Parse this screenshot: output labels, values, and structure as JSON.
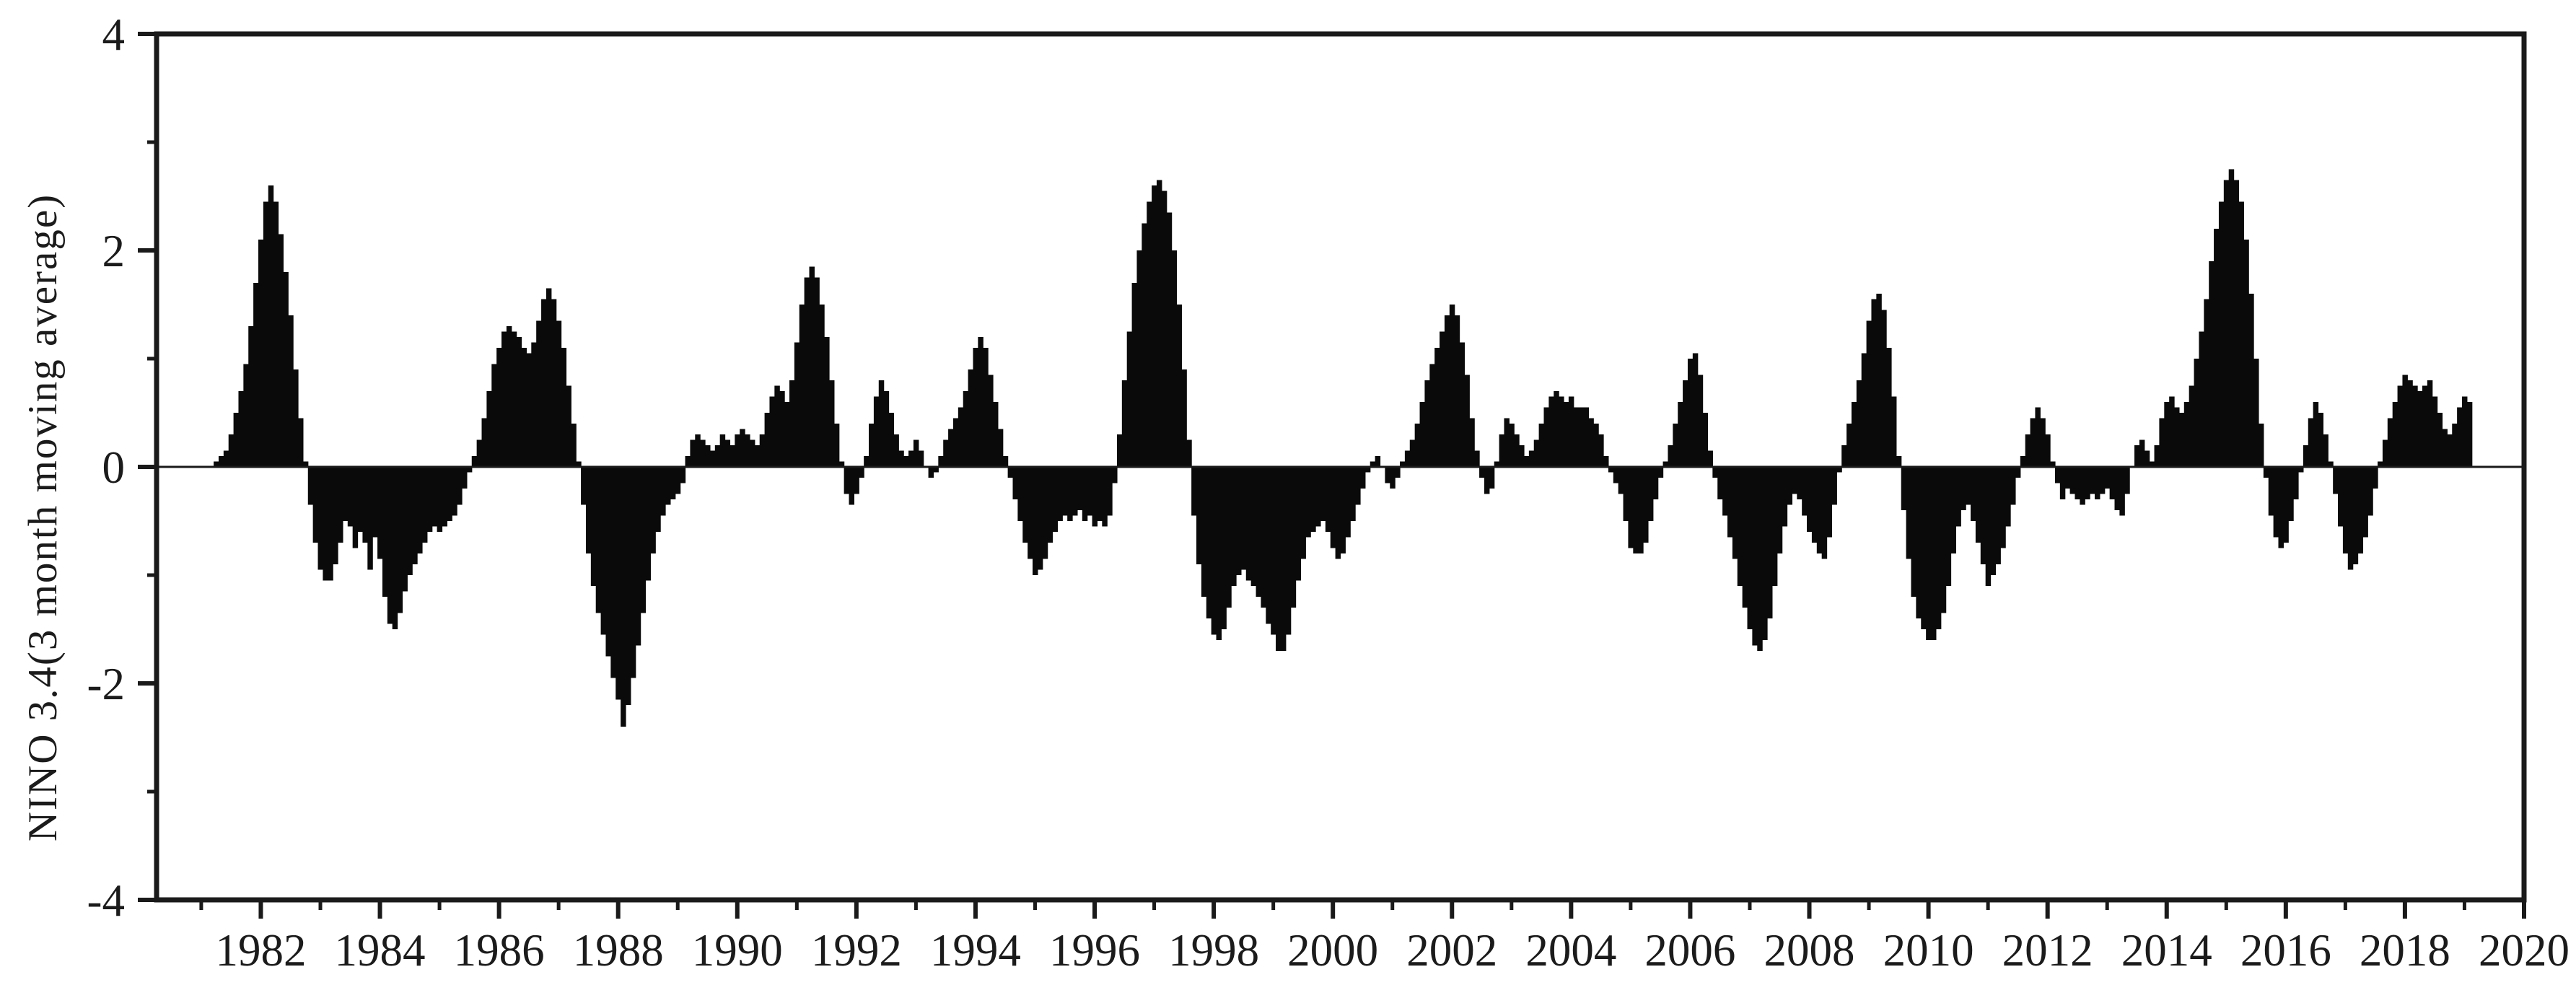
{
  "chart_data": {
    "type": "bar",
    "title": "",
    "xlabel": "",
    "ylabel": "NINO 3.4(3 month moving average)",
    "legend": false,
    "grid": false,
    "bar_color": "#0a0a0a",
    "axis_color": "#1a1a1a",
    "background_color": "#ffffff",
    "y_axis": {
      "min": -4,
      "max": 4,
      "labeled_ticks": [
        -4,
        -2,
        0,
        2,
        4
      ],
      "labeled_tick_texts": [
        "-4",
        "-2",
        "0",
        "2",
        "4"
      ],
      "minor_ticks": [
        -3,
        -1,
        1,
        3
      ],
      "zero_line": true
    },
    "x_axis": {
      "min": 1980.25,
      "max": 2020.0,
      "labeled_ticks": [
        1982,
        1984,
        1986,
        1988,
        1990,
        1992,
        1994,
        1996,
        1998,
        2000,
        2002,
        2004,
        2006,
        2008,
        2010,
        2012,
        2014,
        2016,
        2018,
        2020
      ],
      "labeled_tick_texts": [
        "1982",
        "1984",
        "1986",
        "1988",
        "1990",
        "1992",
        "1994",
        "1996",
        "1998",
        "2000",
        "2002",
        "2004",
        "2006",
        "2008",
        "2010",
        "2012",
        "2014",
        "2016",
        "2018",
        "2020"
      ],
      "minor_ticks": [
        1981,
        1983,
        1985,
        1987,
        1989,
        1991,
        1993,
        1995,
        1997,
        1999,
        2001,
        2003,
        2005,
        2007,
        2009,
        2011,
        2013,
        2015,
        2017,
        2019
      ]
    },
    "series_sampling": "monthly",
    "x_first_bar": 1981.17,
    "x_step": 0.0833333,
    "values": [
      0.0,
      0.05,
      0.1,
      0.15,
      0.3,
      0.5,
      0.7,
      0.95,
      1.3,
      1.7,
      2.1,
      2.45,
      2.6,
      2.45,
      2.15,
      1.8,
      1.4,
      0.9,
      0.45,
      0.05,
      -0.35,
      -0.7,
      -0.95,
      -1.05,
      -1.05,
      -0.9,
      -0.7,
      -0.5,
      -0.55,
      -0.75,
      -0.6,
      -0.7,
      -0.95,
      -0.65,
      -0.85,
      -1.2,
      -1.45,
      -1.5,
      -1.35,
      -1.15,
      -1.0,
      -0.9,
      -0.8,
      -0.7,
      -0.6,
      -0.55,
      -0.6,
      -0.55,
      -0.5,
      -0.45,
      -0.35,
      -0.2,
      -0.05,
      0.1,
      0.25,
      0.45,
      0.7,
      0.95,
      1.1,
      1.25,
      1.3,
      1.25,
      1.2,
      1.1,
      1.05,
      1.15,
      1.35,
      1.55,
      1.65,
      1.55,
      1.35,
      1.1,
      0.75,
      0.4,
      0.05,
      -0.35,
      -0.8,
      -1.1,
      -1.35,
      -1.55,
      -1.75,
      -1.95,
      -2.15,
      -2.4,
      -2.2,
      -1.95,
      -1.65,
      -1.35,
      -1.05,
      -0.8,
      -0.6,
      -0.45,
      -0.35,
      -0.3,
      -0.25,
      -0.15,
      0.1,
      0.25,
      0.3,
      0.25,
      0.2,
      0.15,
      0.2,
      0.3,
      0.25,
      0.2,
      0.3,
      0.35,
      0.3,
      0.25,
      0.2,
      0.3,
      0.5,
      0.65,
      0.75,
      0.7,
      0.6,
      0.8,
      1.15,
      1.5,
      1.75,
      1.85,
      1.75,
      1.5,
      1.2,
      0.8,
      0.4,
      0.05,
      -0.25,
      -0.35,
      -0.25,
      -0.1,
      0.1,
      0.4,
      0.65,
      0.8,
      0.7,
      0.5,
      0.3,
      0.15,
      0.1,
      0.15,
      0.25,
      0.15,
      0.0,
      -0.1,
      -0.05,
      0.1,
      0.25,
      0.35,
      0.45,
      0.55,
      0.7,
      0.9,
      1.1,
      1.2,
      1.1,
      0.85,
      0.6,
      0.35,
      0.1,
      -0.1,
      -0.3,
      -0.5,
      -0.7,
      -0.85,
      -1.0,
      -0.95,
      -0.85,
      -0.7,
      -0.6,
      -0.5,
      -0.45,
      -0.5,
      -0.45,
      -0.4,
      -0.5,
      -0.45,
      -0.55,
      -0.5,
      -0.55,
      -0.45,
      -0.15,
      0.3,
      0.8,
      1.25,
      1.7,
      2.0,
      2.25,
      2.45,
      2.6,
      2.65,
      2.55,
      2.35,
      2.0,
      1.5,
      0.9,
      0.25,
      -0.45,
      -0.9,
      -1.2,
      -1.4,
      -1.55,
      -1.6,
      -1.5,
      -1.3,
      -1.1,
      -1.0,
      -0.95,
      -1.05,
      -1.1,
      -1.2,
      -1.3,
      -1.45,
      -1.55,
      -1.7,
      -1.7,
      -1.55,
      -1.3,
      -1.05,
      -0.85,
      -0.65,
      -0.6,
      -0.55,
      -0.5,
      -0.6,
      -0.75,
      -0.85,
      -0.8,
      -0.65,
      -0.5,
      -0.35,
      -0.2,
      -0.05,
      0.05,
      0.1,
      0.0,
      -0.15,
      -0.2,
      -0.1,
      0.05,
      0.15,
      0.25,
      0.4,
      0.6,
      0.8,
      0.95,
      1.1,
      1.25,
      1.4,
      1.5,
      1.4,
      1.15,
      0.85,
      0.45,
      0.15,
      -0.1,
      -0.25,
      -0.2,
      0.05,
      0.3,
      0.45,
      0.4,
      0.3,
      0.2,
      0.1,
      0.15,
      0.25,
      0.4,
      0.55,
      0.65,
      0.7,
      0.65,
      0.6,
      0.65,
      0.55,
      0.55,
      0.55,
      0.45,
      0.4,
      0.3,
      0.1,
      -0.05,
      -0.15,
      -0.25,
      -0.5,
      -0.75,
      -0.8,
      -0.8,
      -0.7,
      -0.5,
      -0.3,
      -0.1,
      0.05,
      0.2,
      0.4,
      0.6,
      0.8,
      1.0,
      1.05,
      0.85,
      0.5,
      0.15,
      -0.1,
      -0.3,
      -0.45,
      -0.65,
      -0.85,
      -1.1,
      -1.3,
      -1.5,
      -1.65,
      -1.7,
      -1.6,
      -1.4,
      -1.1,
      -0.8,
      -0.55,
      -0.35,
      -0.25,
      -0.3,
      -0.45,
      -0.6,
      -0.7,
      -0.8,
      -0.85,
      -0.65,
      -0.35,
      -0.05,
      0.2,
      0.4,
      0.6,
      0.8,
      1.05,
      1.35,
      1.55,
      1.6,
      1.45,
      1.1,
      0.65,
      0.1,
      -0.4,
      -0.85,
      -1.2,
      -1.4,
      -1.5,
      -1.6,
      -1.6,
      -1.5,
      -1.35,
      -1.1,
      -0.8,
      -0.55,
      -0.4,
      -0.35,
      -0.5,
      -0.7,
      -0.9,
      -1.1,
      -1.0,
      -0.9,
      -0.75,
      -0.55,
      -0.35,
      -0.1,
      0.1,
      0.3,
      0.45,
      0.55,
      0.45,
      0.3,
      0.05,
      -0.15,
      -0.3,
      -0.2,
      -0.25,
      -0.3,
      -0.35,
      -0.3,
      -0.25,
      -0.3,
      -0.25,
      -0.2,
      -0.3,
      -0.4,
      -0.45,
      -0.25,
      0.0,
      0.2,
      0.25,
      0.15,
      0.05,
      0.2,
      0.45,
      0.6,
      0.65,
      0.55,
      0.5,
      0.6,
      0.75,
      1.0,
      1.25,
      1.55,
      1.9,
      2.2,
      2.45,
      2.65,
      2.75,
      2.65,
      2.45,
      2.1,
      1.6,
      1.0,
      0.4,
      -0.1,
      -0.45,
      -0.65,
      -0.75,
      -0.7,
      -0.5,
      -0.3,
      -0.05,
      0.2,
      0.45,
      0.6,
      0.5,
      0.3,
      0.05,
      -0.25,
      -0.55,
      -0.8,
      -0.95,
      -0.9,
      -0.8,
      -0.65,
      -0.45,
      -0.2,
      0.05,
      0.25,
      0.45,
      0.6,
      0.75,
      0.85,
      0.8,
      0.75,
      0.7,
      0.75,
      0.8,
      0.65,
      0.5,
      0.35,
      0.3,
      0.4,
      0.55,
      0.65,
      0.6
    ]
  }
}
